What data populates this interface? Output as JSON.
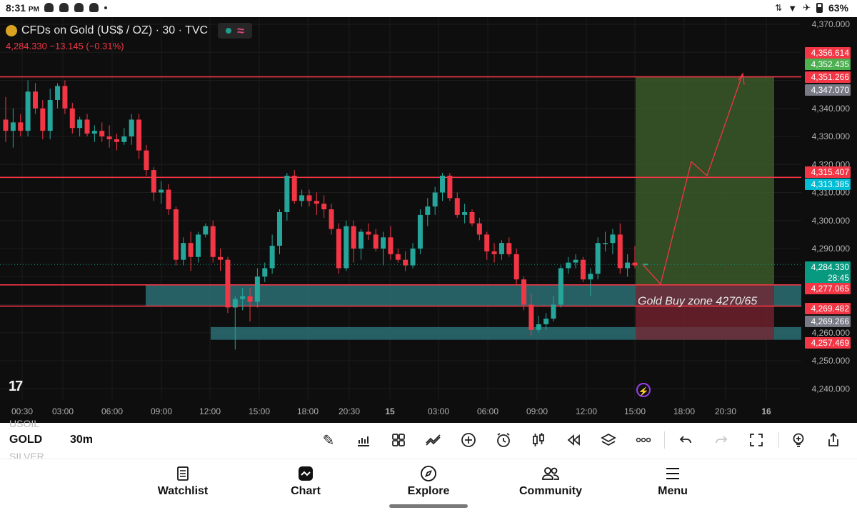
{
  "statusbar": {
    "time": "8:31",
    "ampm": "PM",
    "battery": "63%"
  },
  "chart": {
    "title": "CFDs on Gold (US$ / OZ) · 30 · TVC",
    "price_line": "4,284.330  −13.145 (−0.31%)",
    "watermark": "17",
    "annotation": "Gold Buy zone 4270/65",
    "yaxis_ticks": [
      "4,370.000",
      "4,340.000",
      "4,330.000",
      "4,320.000",
      "4,310.000",
      "4,300.000",
      "4,290.000",
      "4,260.000",
      "4,250.000",
      "4,240.000"
    ],
    "xaxis_ticks": [
      "00:30",
      "03:00",
      "06:00",
      "09:00",
      "12:00",
      "15:00",
      "18:00",
      "20:30",
      "15",
      "03:00",
      "06:00",
      "09:00",
      "12:00",
      "15:00",
      "18:00",
      "20:30",
      "16"
    ],
    "price_labels": [
      {
        "text": "4,356.614",
        "color": "#f23645"
      },
      {
        "text": "4,352.435",
        "color": "#4caf50"
      },
      {
        "text": "4,351.266",
        "color": "#f23645"
      },
      {
        "text": "4,347.070",
        "color": "#787b86"
      },
      {
        "text": "4,315.407",
        "color": "#f23645"
      },
      {
        "text": "4,313.385",
        "color": "#00bcd4"
      },
      {
        "text": "4,284.330",
        "color": "#089981"
      },
      {
        "text": "28:45",
        "color": "#089981"
      },
      {
        "text": "4,277.065",
        "color": "#f23645"
      },
      {
        "text": "4,269.482",
        "color": "#f23645"
      },
      {
        "text": "4,269.266",
        "color": "#787b86"
      },
      {
        "text": "4,257.469",
        "color": "#f23645"
      }
    ],
    "colors": {
      "up": "#26a69a",
      "down": "#f23645",
      "line": "#f23645",
      "zone": "#2a6f73",
      "target": "#3d5e2b"
    },
    "candles": [
      [
        4336,
        4344,
        4328,
        4332
      ],
      [
        4332,
        4340,
        4326,
        4335
      ],
      [
        4335,
        4338,
        4330,
        4332
      ],
      [
        4332,
        4350,
        4330,
        4346
      ],
      [
        4346,
        4349,
        4338,
        4340
      ],
      [
        4340,
        4343,
        4329,
        4332
      ],
      [
        4332,
        4347,
        4329,
        4343
      ],
      [
        4343,
        4349,
        4340,
        4348
      ],
      [
        4348,
        4350,
        4338,
        4340
      ],
      [
        4340,
        4342,
        4331,
        4333
      ],
      [
        4333,
        4337,
        4330,
        4336
      ],
      [
        4336,
        4338,
        4330,
        4331
      ],
      [
        4331,
        4334,
        4328,
        4332
      ],
      [
        4332,
        4335,
        4328,
        4330
      ],
      [
        4330,
        4334,
        4326,
        4329
      ],
      [
        4329,
        4331,
        4325,
        4328
      ],
      [
        4328,
        4333,
        4327,
        4330
      ],
      [
        4330,
        4338,
        4327,
        4336
      ],
      [
        4336,
        4338,
        4322,
        4325
      ],
      [
        4325,
        4327,
        4316,
        4318
      ],
      [
        4318,
        4319,
        4307,
        4310
      ],
      [
        4310,
        4314,
        4306,
        4311
      ],
      [
        4311,
        4313,
        4302,
        4304
      ],
      [
        4304,
        4305,
        4284,
        4286
      ],
      [
        4286,
        4294,
        4284,
        4292
      ],
      [
        4292,
        4296,
        4282,
        4287
      ],
      [
        4287,
        4296,
        4285,
        4295
      ],
      [
        4295,
        4299,
        4294,
        4298
      ],
      [
        4298,
        4300,
        4285,
        4287
      ],
      [
        4287,
        4290,
        4282,
        4286
      ],
      [
        4286,
        4287,
        4267,
        4269
      ],
      [
        4269,
        4273,
        4254,
        4272
      ],
      [
        4272,
        4276,
        4268,
        4273
      ],
      [
        4273,
        4276,
        4264,
        4271
      ],
      [
        4271,
        4283,
        4269,
        4280
      ],
      [
        4280,
        4285,
        4278,
        4283
      ],
      [
        4283,
        4295,
        4281,
        4291
      ],
      [
        4291,
        4304,
        4288,
        4303
      ],
      [
        4303,
        4317,
        4300,
        4316
      ],
      [
        4316,
        4318,
        4306,
        4307
      ],
      [
        4307,
        4311,
        4305,
        4309
      ],
      [
        4309,
        4311,
        4305,
        4307
      ],
      [
        4307,
        4310,
        4302,
        4306
      ],
      [
        4306,
        4309,
        4301,
        4304
      ],
      [
        4304,
        4306,
        4295,
        4297
      ],
      [
        4297,
        4299,
        4281,
        4283
      ],
      [
        4283,
        4300,
        4282,
        4298
      ],
      [
        4298,
        4300,
        4285,
        4290
      ],
      [
        4290,
        4297,
        4286,
        4296
      ],
      [
        4296,
        4299,
        4293,
        4295
      ],
      [
        4295,
        4297,
        4289,
        4290
      ],
      [
        4290,
        4296,
        4284,
        4294
      ],
      [
        4294,
        4298,
        4286,
        4288
      ],
      [
        4288,
        4290,
        4285,
        4286
      ],
      [
        4286,
        4289,
        4282,
        4284
      ],
      [
        4284,
        4292,
        4283,
        4290
      ],
      [
        4290,
        4304,
        4288,
        4302
      ],
      [
        4302,
        4308,
        4298,
        4305
      ],
      [
        4305,
        4312,
        4302,
        4310
      ],
      [
        4310,
        4317,
        4307,
        4316
      ],
      [
        4316,
        4317,
        4307,
        4308
      ],
      [
        4308,
        4310,
        4301,
        4302
      ],
      [
        4302,
        4306,
        4299,
        4303
      ],
      [
        4303,
        4304,
        4298,
        4299
      ],
      [
        4299,
        4301,
        4293,
        4295
      ],
      [
        4295,
        4296,
        4286,
        4289
      ],
      [
        4289,
        4292,
        4285,
        4288
      ],
      [
        4288,
        4293,
        4286,
        4292
      ],
      [
        4292,
        4294,
        4287,
        4288
      ],
      [
        4288,
        4290,
        4277,
        4279
      ],
      [
        4279,
        4280,
        4268,
        4270
      ],
      [
        4270,
        4274,
        4259,
        4261
      ],
      [
        4261,
        4266,
        4260,
        4263
      ],
      [
        4263,
        4267,
        4261,
        4265
      ],
      [
        4265,
        4273,
        4264,
        4270
      ],
      [
        4270,
        4284,
        4269,
        4283
      ],
      [
        4283,
        4287,
        4281,
        4285
      ],
      [
        4285,
        4288,
        4283,
        4286
      ],
      [
        4286,
        4287,
        4278,
        4279
      ],
      [
        4279,
        4283,
        4273,
        4281
      ],
      [
        4281,
        4294,
        4279,
        4292
      ],
      [
        4292,
        4296,
        4289,
        4292
      ],
      [
        4292,
        4297,
        4288,
        4295
      ],
      [
        4295,
        4299,
        4281,
        4283
      ],
      [
        4283,
        4288,
        4280,
        4285
      ],
      [
        4285,
        4291,
        4283,
        4284
      ]
    ],
    "cursor_candle": [
      4284,
      4285,
      4283,
      4284.33
    ]
  },
  "toolbar": {
    "symbol_above": "USOIL",
    "symbol": "GOLD",
    "symbol_below": "SILVER",
    "interval": "30m"
  },
  "nav": {
    "watchlist": "Watchlist",
    "chart": "Chart",
    "explore": "Explore",
    "community": "Community",
    "menu": "Menu"
  }
}
